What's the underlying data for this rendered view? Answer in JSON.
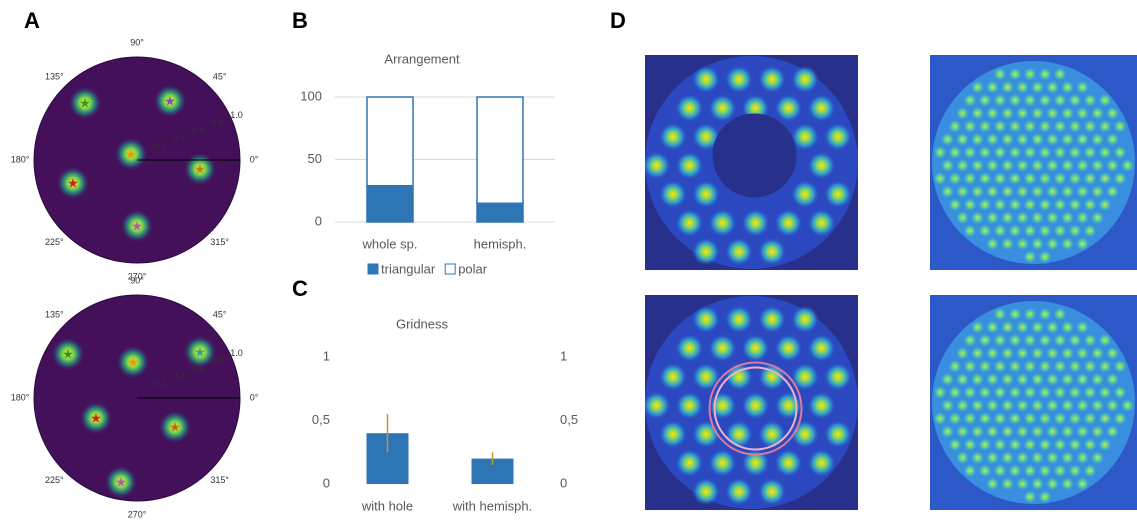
{
  "chart_data": [
    {
      "type": "polar",
      "panel_label": "A",
      "angle_ticks": [
        {
          "value": 90,
          "label": "90°"
        },
        {
          "value": 45,
          "label": "45°"
        },
        {
          "value": 0,
          "label": "0°"
        },
        {
          "value": 315,
          "label": "315°"
        },
        {
          "value": 270,
          "label": "270°"
        },
        {
          "value": 225,
          "label": "225°"
        },
        {
          "value": 180,
          "label": "180°"
        },
        {
          "value": 135,
          "label": "135°"
        }
      ],
      "radial_ticks": [
        0.2,
        0.4,
        0.6,
        0.8,
        {
          "value": 1,
          "label": "1.0"
        }
      ]
    },
    {
      "type": "polar",
      "angle_ticks": [
        {
          "value": 90,
          "label": "90°"
        },
        {
          "value": 45,
          "label": "45°"
        },
        {
          "value": 0,
          "label": "0°"
        },
        {
          "value": 315,
          "label": "315°"
        },
        {
          "value": 270,
          "label": "270°"
        },
        {
          "value": 225,
          "label": "225°"
        },
        {
          "value": 180,
          "label": "180°"
        },
        {
          "value": 135,
          "label": "135°"
        }
      ],
      "radial_ticks": [
        0.2,
        0.4,
        0.6,
        0.8,
        {
          "value": 1,
          "label": "1.0"
        }
      ]
    },
    {
      "type": "stacked-bar",
      "panel_label": "B",
      "title": "Arrangement",
      "categories": [
        "whole sp.",
        "hemisph."
      ],
      "series": [
        {
          "name": "triangular",
          "color": "#2e75b6",
          "values": [
            29,
            15
          ]
        },
        {
          "name": "polar",
          "color": "#ffffff",
          "values": [
            71,
            85
          ]
        }
      ],
      "ylim": [
        0,
        100
      ],
      "yticks": [
        0,
        50,
        100
      ],
      "grid": true
    },
    {
      "type": "bar",
      "panel_label": "C",
      "title": "Gridness",
      "categories": [
        "with hole",
        "with hemisph."
      ],
      "values": [
        0.4,
        0.2
      ],
      "errors": [
        0.15,
        0.05
      ],
      "color": "#2e75b6",
      "error_color": "#b59a3c",
      "ylim": [
        0,
        1
      ],
      "yticks": [
        0,
        {
          "value": 0.5,
          "label": "0,5"
        },
        1
      ],
      "y2lim": [
        0,
        1
      ],
      "y2ticks": [
        0,
        {
          "value": 0.5,
          "label": "0,5"
        },
        1
      ],
      "grid": false
    },
    {
      "type": "image",
      "panel_label": "D"
    }
  ]
}
